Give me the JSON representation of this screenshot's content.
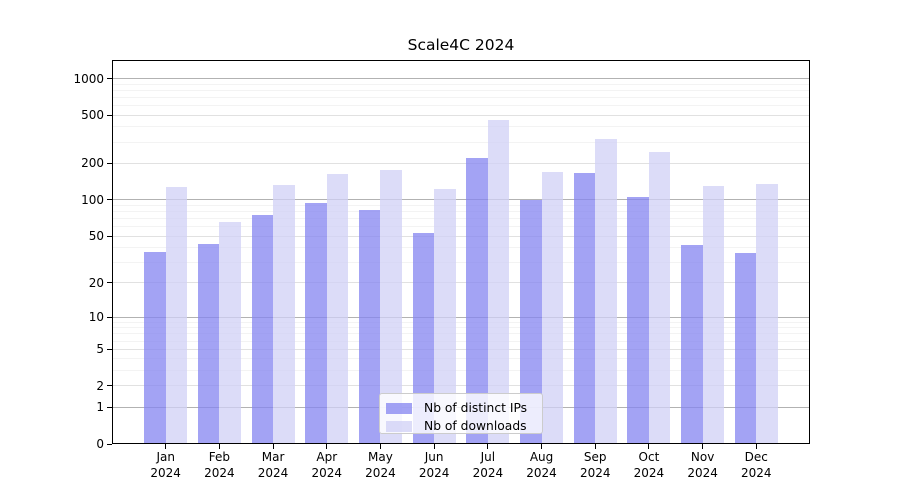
{
  "chart_data": {
    "type": "bar",
    "title": "Scale4C 2024",
    "year": "2024",
    "categories": [
      "Jan",
      "Feb",
      "Mar",
      "Apr",
      "May",
      "Jun",
      "Jul",
      "Aug",
      "Sep",
      "Oct",
      "Nov",
      "Dec"
    ],
    "series": [
      {
        "name": "Nb of distinct IPs",
        "color": "#8484f0",
        "values": [
          37,
          43,
          75,
          94,
          82,
          53,
          222,
          100,
          168,
          105,
          42,
          36
        ]
      },
      {
        "name": "Nb of downloads",
        "color": "#d0d0f5",
        "values": [
          128,
          66,
          132,
          165,
          176,
          124,
          460,
          170,
          320,
          250,
          130,
          136
        ]
      }
    ],
    "bar_alpha": 0.75,
    "xlabel": "",
    "ylabel": "",
    "y_axis": {
      "scale": "log1p",
      "ticks": [
        0,
        1,
        2,
        5,
        10,
        20,
        50,
        100,
        200,
        500,
        1000
      ],
      "major_ticks": [
        1,
        10,
        100,
        1000
      ],
      "max": 1420
    },
    "grid": true,
    "legend_position": "lower-center"
  },
  "colors": {
    "grid_major": "#b2b2b2",
    "grid_minor": "#e1e1e1",
    "grid_faint": "#f3f3f3",
    "axis": "#000000",
    "legend_border": "#cccccc",
    "background": "#ffffff"
  }
}
